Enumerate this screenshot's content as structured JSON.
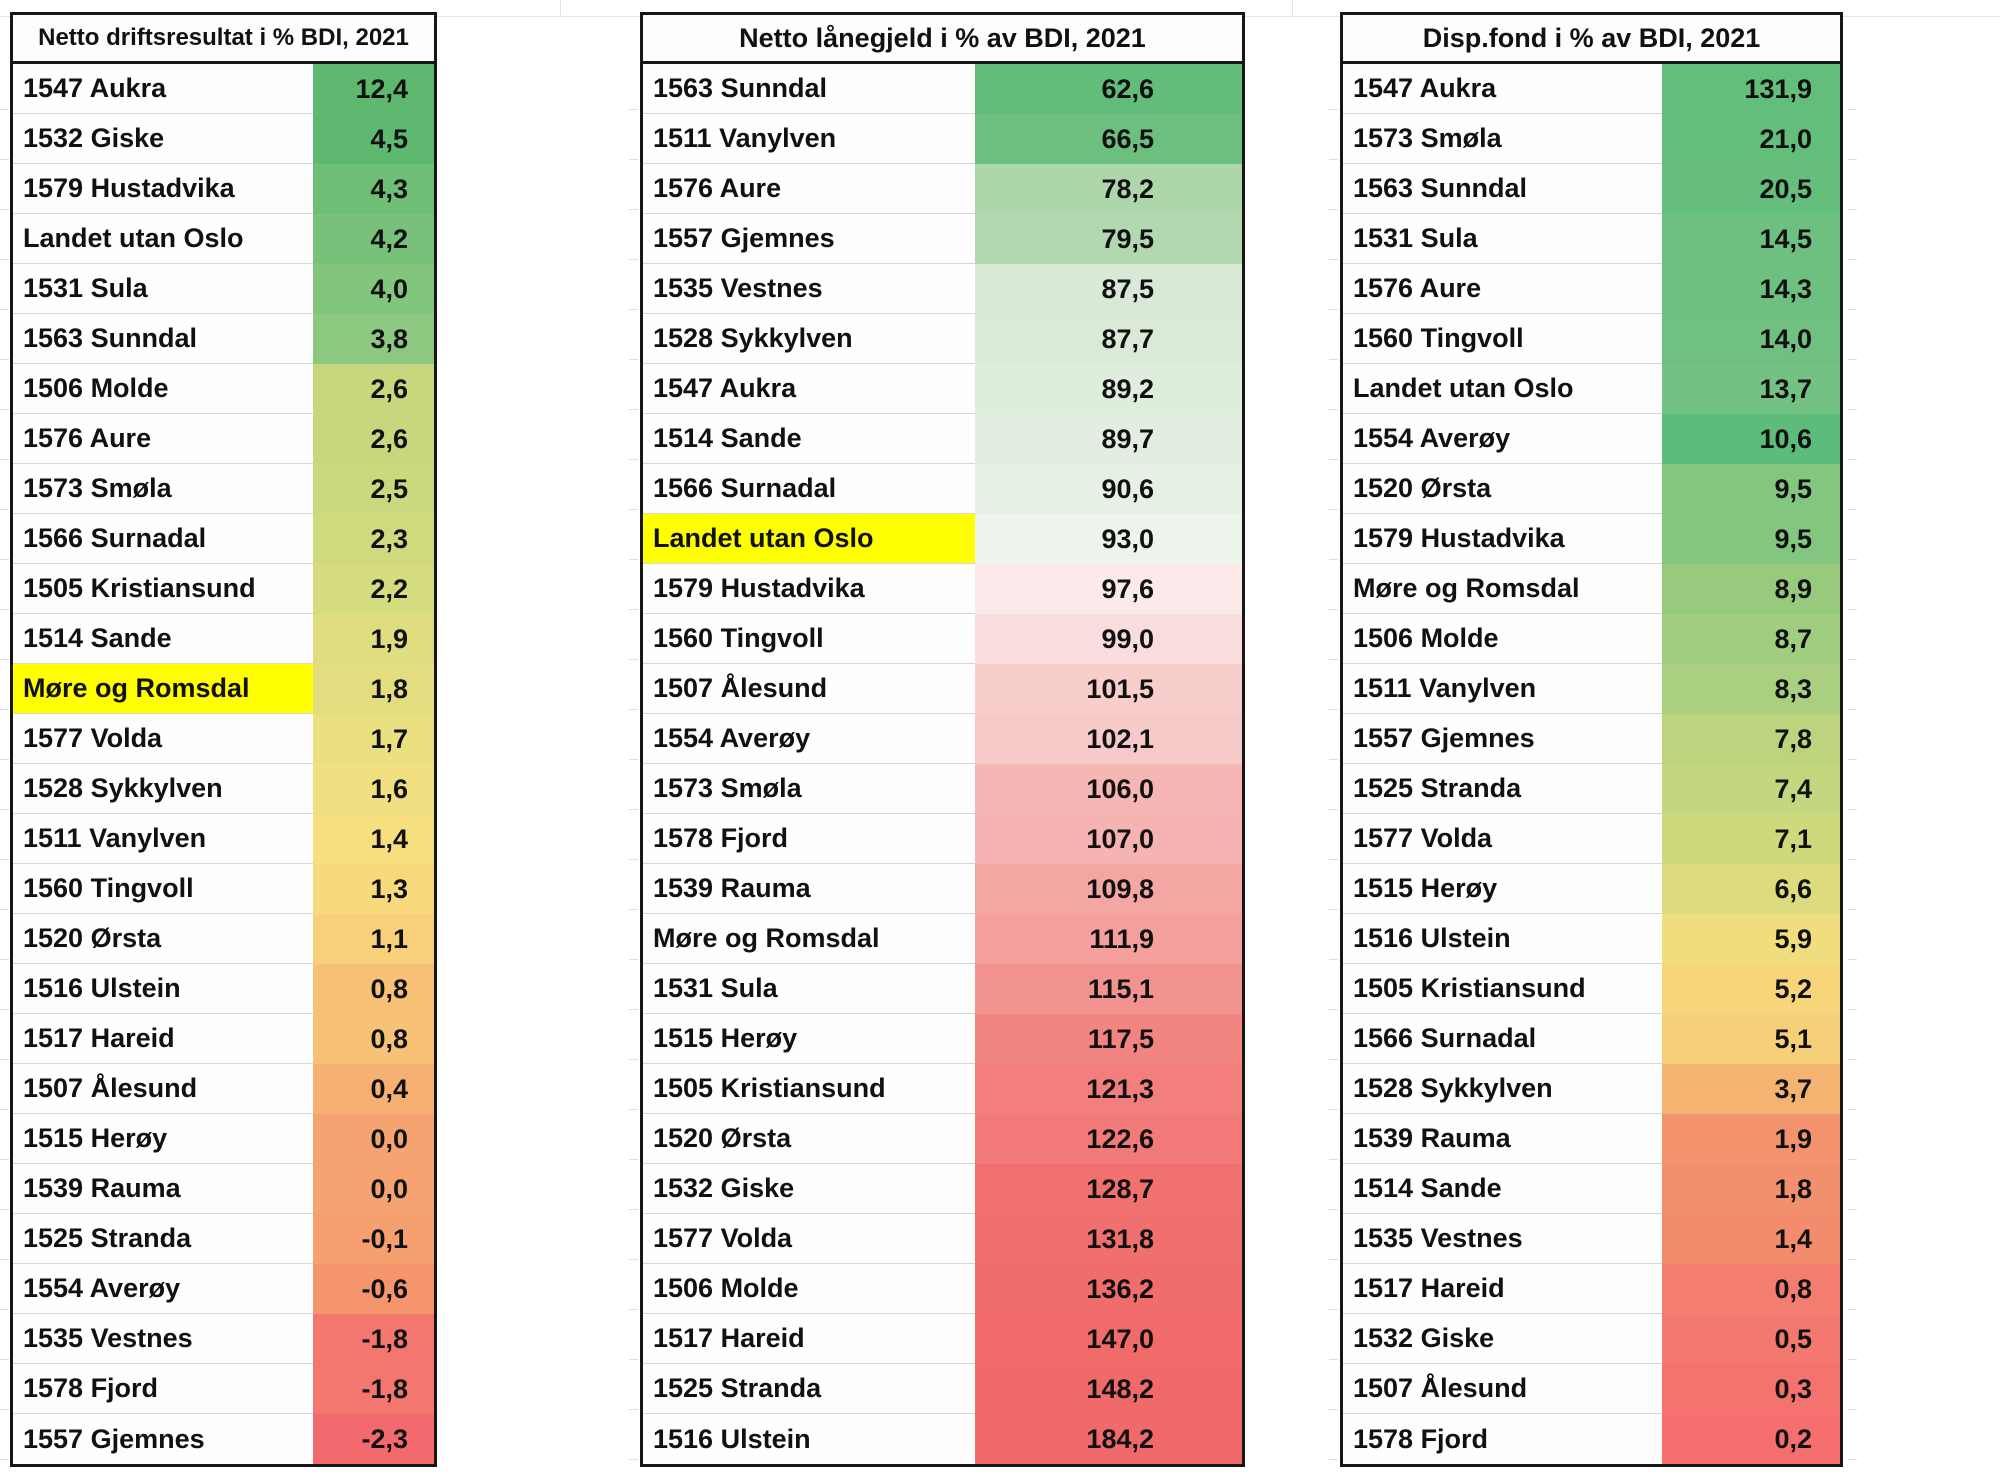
{
  "chart_data": [
    {
      "type": "table",
      "title": "Netto driftsresultat i % BDI, 2021",
      "categories": [
        "1547 Aukra",
        "1532 Giske",
        "1579 Hustadvika",
        "Landet utan Oslo",
        "1531 Sula",
        "1563 Sunndal",
        "1506 Molde",
        "1576 Aure",
        "1573 Smøla",
        "1566 Surnadal",
        "1505 Kristiansund",
        "1514 Sande",
        "Møre og Romsdal",
        "1577 Volda",
        "1528 Sykkylven",
        "1511 Vanylven",
        "1560 Tingvoll",
        "1520 Ørsta",
        "1516 Ulstein",
        "1517 Hareid",
        "1507 Ålesund",
        "1515 Herøy",
        "1539 Rauma",
        "1525 Stranda",
        "1554 Averøy",
        "1535 Vestnes",
        "1578 Fjord",
        "1557 Gjemnes"
      ],
      "values": [
        12.4,
        4.5,
        4.3,
        4.2,
        4.0,
        3.8,
        2.6,
        2.6,
        2.5,
        2.3,
        2.2,
        1.9,
        1.8,
        1.7,
        1.6,
        1.4,
        1.3,
        1.1,
        0.8,
        0.8,
        0.4,
        0.0,
        0.0,
        -0.1,
        -0.6,
        -1.8,
        -1.8,
        -2.3
      ],
      "highlighted_row": "Møre og Romsdal",
      "color_scale": "green-yellow-red, high=green"
    },
    {
      "type": "table",
      "title": "Netto lånegjeld i % av BDI, 2021",
      "categories": [
        "1563 Sunndal",
        "1511 Vanylven",
        "1576 Aure",
        "1557 Gjemnes",
        "1535 Vestnes",
        "1528 Sykkylven",
        "1547 Aukra",
        "1514 Sande",
        "1566 Surnadal",
        "Landet utan Oslo",
        "1579 Hustadvika",
        "1560 Tingvoll",
        "1507 Ålesund",
        "1554 Averøy",
        "1573 Smøla",
        "1578 Fjord",
        "1539 Rauma",
        "Møre og Romsdal",
        "1531 Sula",
        "1515 Herøy",
        "1505 Kristiansund",
        "1520 Ørsta",
        "1532 Giske",
        "1577 Volda",
        "1506 Molde",
        "1517 Hareid",
        "1525 Stranda",
        "1516 Ulstein"
      ],
      "values": [
        62.6,
        66.5,
        78.2,
        79.5,
        87.5,
        87.7,
        89.2,
        89.7,
        90.6,
        93.0,
        97.6,
        99.0,
        101.5,
        102.1,
        106.0,
        107.0,
        109.8,
        111.9,
        115.1,
        117.5,
        121.3,
        122.6,
        128.7,
        131.8,
        136.2,
        147.0,
        148.2,
        184.2
      ],
      "highlighted_row": "Landet utan Oslo",
      "color_scale": "green-white-red, low=green"
    },
    {
      "type": "table",
      "title": "Disp.fond i % av BDI, 2021",
      "categories": [
        "1547 Aukra",
        "1573 Smøla",
        "1563 Sunndal",
        "1531 Sula",
        "1576 Aure",
        "1560 Tingvoll",
        "Landet utan Oslo",
        "1554 Averøy",
        "1520 Ørsta",
        "1579 Hustadvika",
        "Møre og Romsdal",
        "1506 Molde",
        "1511 Vanylven",
        "1557 Gjemnes",
        "1525 Stranda",
        "1577 Volda",
        "1515 Herøy",
        "1516 Ulstein",
        "1505 Kristiansund",
        "1566 Surnadal",
        "1528 Sykkylven",
        "1539 Rauma",
        "1514 Sande",
        "1535 Vestnes",
        "1517 Hareid",
        "1532 Giske",
        "1507 Ålesund",
        "1578 Fjord"
      ],
      "values": [
        131.9,
        21.0,
        20.5,
        14.5,
        14.3,
        14.0,
        13.7,
        10.6,
        9.5,
        9.5,
        8.9,
        8.7,
        8.3,
        7.8,
        7.4,
        7.1,
        6.6,
        5.9,
        5.2,
        5.1,
        3.7,
        1.9,
        1.8,
        1.4,
        0.8,
        0.5,
        0.3,
        0.2
      ],
      "highlighted_row": null,
      "color_scale": "green-yellow-red, high=green"
    }
  ],
  "tables": [
    {
      "title": "Netto driftsresultat i % BDI, 2021",
      "rows": [
        {
          "label": "1547 Aukra",
          "value": "12,4",
          "color": "#5eb870",
          "highlight": false
        },
        {
          "label": "1532 Giske",
          "value": "4,5",
          "color": "#5eb870",
          "highlight": false
        },
        {
          "label": "1579 Hustadvika",
          "value": "4,3",
          "color": "#6fbe76",
          "highlight": false
        },
        {
          "label": "Landet utan Oslo",
          "value": "4,2",
          "color": "#77c17a",
          "highlight": false
        },
        {
          "label": "1531 Sula",
          "value": "4,0",
          "color": "#82c57d",
          "highlight": false
        },
        {
          "label": "1563 Sunndal",
          "value": "3,8",
          "color": "#8cc87f",
          "highlight": false
        },
        {
          "label": "1506 Molde",
          "value": "2,6",
          "color": "#c6d77d",
          "highlight": false
        },
        {
          "label": "1576 Aure",
          "value": "2,6",
          "color": "#c6d77d",
          "highlight": false
        },
        {
          "label": "1573 Smøla",
          "value": "2,5",
          "color": "#cad87e",
          "highlight": false
        },
        {
          "label": "1566 Surnadal",
          "value": "2,3",
          "color": "#cfd97e",
          "highlight": false
        },
        {
          "label": "1505 Kristiansund",
          "value": "2,2",
          "color": "#d5db7f",
          "highlight": false
        },
        {
          "label": "1514 Sande",
          "value": "1,9",
          "color": "#dfdd80",
          "highlight": false
        },
        {
          "label": "Møre og Romsdal",
          "value": "1,8",
          "color": "#e4dd7f",
          "highlight": true
        },
        {
          "label": "1577 Volda",
          "value": "1,7",
          "color": "#eadf81",
          "highlight": false
        },
        {
          "label": "1528 Sykkylven",
          "value": "1,6",
          "color": "#f0e082",
          "highlight": false
        },
        {
          "label": "1511 Vanylven",
          "value": "1,4",
          "color": "#f7df80",
          "highlight": false
        },
        {
          "label": "1560 Tingvoll",
          "value": "1,3",
          "color": "#f8d97d",
          "highlight": false
        },
        {
          "label": "1520 Ørsta",
          "value": "1,1",
          "color": "#f8d07a",
          "highlight": false
        },
        {
          "label": "1516 Ulstein",
          "value": "0,8",
          "color": "#f7c276",
          "highlight": false
        },
        {
          "label": "1517 Hareid",
          "value": "0,8",
          "color": "#f7c276",
          "highlight": false
        },
        {
          "label": "1507 Ålesund",
          "value": "0,4",
          "color": "#f6b172",
          "highlight": false
        },
        {
          "label": "1515 Herøy",
          "value": "0,0",
          "color": "#f5a471",
          "highlight": false
        },
        {
          "label": "1539 Rauma",
          "value": "0,0",
          "color": "#f5a471",
          "highlight": false
        },
        {
          "label": "1525 Stranda",
          "value": "-0,1",
          "color": "#f5a06e",
          "highlight": false
        },
        {
          "label": "1554 Averøy",
          "value": "-0,6",
          "color": "#f4956e",
          "highlight": false
        },
        {
          "label": "1535 Vestnes",
          "value": "-1,8",
          "color": "#f3766f",
          "highlight": false
        },
        {
          "label": "1578 Fjord",
          "value": "-1,8",
          "color": "#f3766f",
          "highlight": false
        },
        {
          "label": "1557 Gjemnes",
          "value": "-2,3",
          "color": "#f26a6d",
          "highlight": false
        }
      ]
    },
    {
      "title": "Netto lånegjeld i % av BDI, 2021",
      "rows": [
        {
          "label": "1563 Sunndal",
          "value": "62,6",
          "color": "#62bd7a",
          "highlight": false
        },
        {
          "label": "1511 Vanylven",
          "value": "66,5",
          "color": "#6cbf7e",
          "highlight": false
        },
        {
          "label": "1576 Aure",
          "value": "78,2",
          "color": "#aed6ab",
          "highlight": false
        },
        {
          "label": "1557 Gjemnes",
          "value": "79,5",
          "color": "#b3d8af",
          "highlight": false
        },
        {
          "label": "1535 Vestnes",
          "value": "87,5",
          "color": "#d8e9d5",
          "highlight": false
        },
        {
          "label": "1528 Sykkylven",
          "value": "87,7",
          "color": "#daead7",
          "highlight": false
        },
        {
          "label": "1547 Aukra",
          "value": "89,2",
          "color": "#dfeddc",
          "highlight": false
        },
        {
          "label": "1514 Sande",
          "value": "89,7",
          "color": "#e2efe0",
          "highlight": false
        },
        {
          "label": "1566 Surnadal",
          "value": "90,6",
          "color": "#e6f1e4",
          "highlight": false
        },
        {
          "label": "Landet utan Oslo",
          "value": "93,0",
          "color": "#ecf4eb",
          "highlight": true
        },
        {
          "label": "1579 Hustadvika",
          "value": "97,6",
          "color": "#fceaea",
          "highlight": false
        },
        {
          "label": "1560 Tingvoll",
          "value": "99,0",
          "color": "#f9dcdc",
          "highlight": false
        },
        {
          "label": "1507 Ålesund",
          "value": "101,5",
          "color": "#f8cecd",
          "highlight": false
        },
        {
          "label": "1554 Averøy",
          "value": "102,1",
          "color": "#f7caca",
          "highlight": false
        },
        {
          "label": "1573 Smøla",
          "value": "106,0",
          "color": "#f5b6b4",
          "highlight": false
        },
        {
          "label": "1578 Fjord",
          "value": "107,0",
          "color": "#f5b3b1",
          "highlight": false
        },
        {
          "label": "1539 Rauma",
          "value": "109,8",
          "color": "#f4a6a3",
          "highlight": false
        },
        {
          "label": "Møre og Romsdal",
          "value": "111,9",
          "color": "#f4a09d",
          "highlight": false
        },
        {
          "label": "1531 Sula",
          "value": "115,1",
          "color": "#f39390",
          "highlight": false
        },
        {
          "label": "1515 Herøy",
          "value": "117,5",
          "color": "#f28582",
          "highlight": false
        },
        {
          "label": "1505 Kristiansund",
          "value": "121,3",
          "color": "#f27e7d",
          "highlight": false
        },
        {
          "label": "1520 Ørsta",
          "value": "122,6",
          "color": "#f27b7a",
          "highlight": false
        },
        {
          "label": "1532 Giske",
          "value": "128,7",
          "color": "#f17170",
          "highlight": false
        },
        {
          "label": "1577 Volda",
          "value": "131,8",
          "color": "#f16f6f",
          "highlight": false
        },
        {
          "label": "1506 Molde",
          "value": "136,2",
          "color": "#f16d6d",
          "highlight": false
        },
        {
          "label": "1517 Hareid",
          "value": "147,0",
          "color": "#f16b6b",
          "highlight": false
        },
        {
          "label": "1525 Stranda",
          "value": "148,2",
          "color": "#f16a6a",
          "highlight": false
        },
        {
          "label": "1516 Ulstein",
          "value": "184,2",
          "color": "#f0696b",
          "highlight": false
        }
      ]
    },
    {
      "title": "Disp.fond i % av BDI, 2021",
      "rows": [
        {
          "label": "1547 Aukra",
          "value": "131,9",
          "color": "#63bd7b",
          "highlight": false
        },
        {
          "label": "1573 Smøla",
          "value": "21,0",
          "color": "#63bd7b",
          "highlight": false
        },
        {
          "label": "1563 Sunndal",
          "value": "20,5",
          "color": "#65be7c",
          "highlight": false
        },
        {
          "label": "1531 Sula",
          "value": "14,5",
          "color": "#6dc080",
          "highlight": false
        },
        {
          "label": "1576 Aure",
          "value": "14,3",
          "color": "#6ec081",
          "highlight": false
        },
        {
          "label": "1560 Tingvoll",
          "value": "14,0",
          "color": "#70c181",
          "highlight": false
        },
        {
          "label": "Landet utan Oslo",
          "value": "13,7",
          "color": "#73c283",
          "highlight": false
        },
        {
          "label": "1554 Averøy",
          "value": "10,6",
          "color": "#5dbb7b",
          "highlight": false
        },
        {
          "label": "1520 Ørsta",
          "value": "9,5",
          "color": "#83c67f",
          "highlight": false
        },
        {
          "label": "1579 Hustadvika",
          "value": "9,5",
          "color": "#83c67f",
          "highlight": false
        },
        {
          "label": "Møre og Romsdal",
          "value": "8,9",
          "color": "#98ca7e",
          "highlight": false
        },
        {
          "label": "1506 Molde",
          "value": "8,7",
          "color": "#a1cd7e",
          "highlight": false
        },
        {
          "label": "1511 Vanylven",
          "value": "8,3",
          "color": "#a9cf80",
          "highlight": false
        },
        {
          "label": "1557 Gjemnes",
          "value": "7,8",
          "color": "#bdd47e",
          "highlight": false
        },
        {
          "label": "1525 Stranda",
          "value": "7,4",
          "color": "#c4d67e",
          "highlight": false
        },
        {
          "label": "1577 Volda",
          "value": "7,1",
          "color": "#ced97e",
          "highlight": false
        },
        {
          "label": "1515 Herøy",
          "value": "6,6",
          "color": "#dcdc7e",
          "highlight": false
        },
        {
          "label": "1516 Ulstein",
          "value": "5,9",
          "color": "#f0de7e",
          "highlight": false
        },
        {
          "label": "1505 Kristiansund",
          "value": "5,2",
          "color": "#f6d57b",
          "highlight": false
        },
        {
          "label": "1566 Surnadal",
          "value": "5,1",
          "color": "#f6d078",
          "highlight": false
        },
        {
          "label": "1528 Sykkylven",
          "value": "3,7",
          "color": "#f5b372",
          "highlight": false
        },
        {
          "label": "1539 Rauma",
          "value": "1,9",
          "color": "#f2936e",
          "highlight": false
        },
        {
          "label": "1514 Sande",
          "value": "1,8",
          "color": "#f2906e",
          "highlight": false
        },
        {
          "label": "1535 Vestnes",
          "value": "1,4",
          "color": "#f28c6d",
          "highlight": false
        },
        {
          "label": "1517 Hareid",
          "value": "0,8",
          "color": "#f37e70",
          "highlight": false
        },
        {
          "label": "1532 Giske",
          "value": "0,5",
          "color": "#f3786f",
          "highlight": false
        },
        {
          "label": "1507 Ålesund",
          "value": "0,3",
          "color": "#f4736e",
          "highlight": false
        },
        {
          "label": "1578 Fjord",
          "value": "0,2",
          "color": "#f46f6e",
          "highlight": false
        }
      ]
    }
  ]
}
